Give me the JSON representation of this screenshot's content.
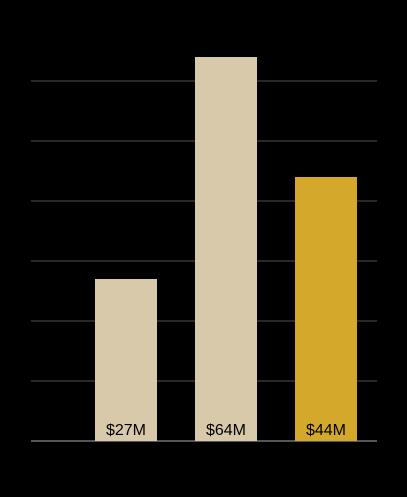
{
  "chart_data": {
    "type": "bar",
    "categories": [
      "",
      "",
      ""
    ],
    "values": [
      27,
      64,
      44
    ],
    "data_labels": [
      "$27M",
      "$64M",
      "$44M"
    ],
    "ylim": [
      0,
      70
    ],
    "yticks": [
      0,
      10,
      20,
      30,
      40,
      50,
      60
    ],
    "grid": true,
    "legend": "none",
    "colors": {
      "background": "#000000",
      "gridline": "#6b6b6b",
      "baseline": "#8a8a8a",
      "bar_default": "#d9c9ab",
      "bar_highlight": "#d4a82a",
      "label_text": "#000000"
    },
    "highlight_index": 2
  }
}
